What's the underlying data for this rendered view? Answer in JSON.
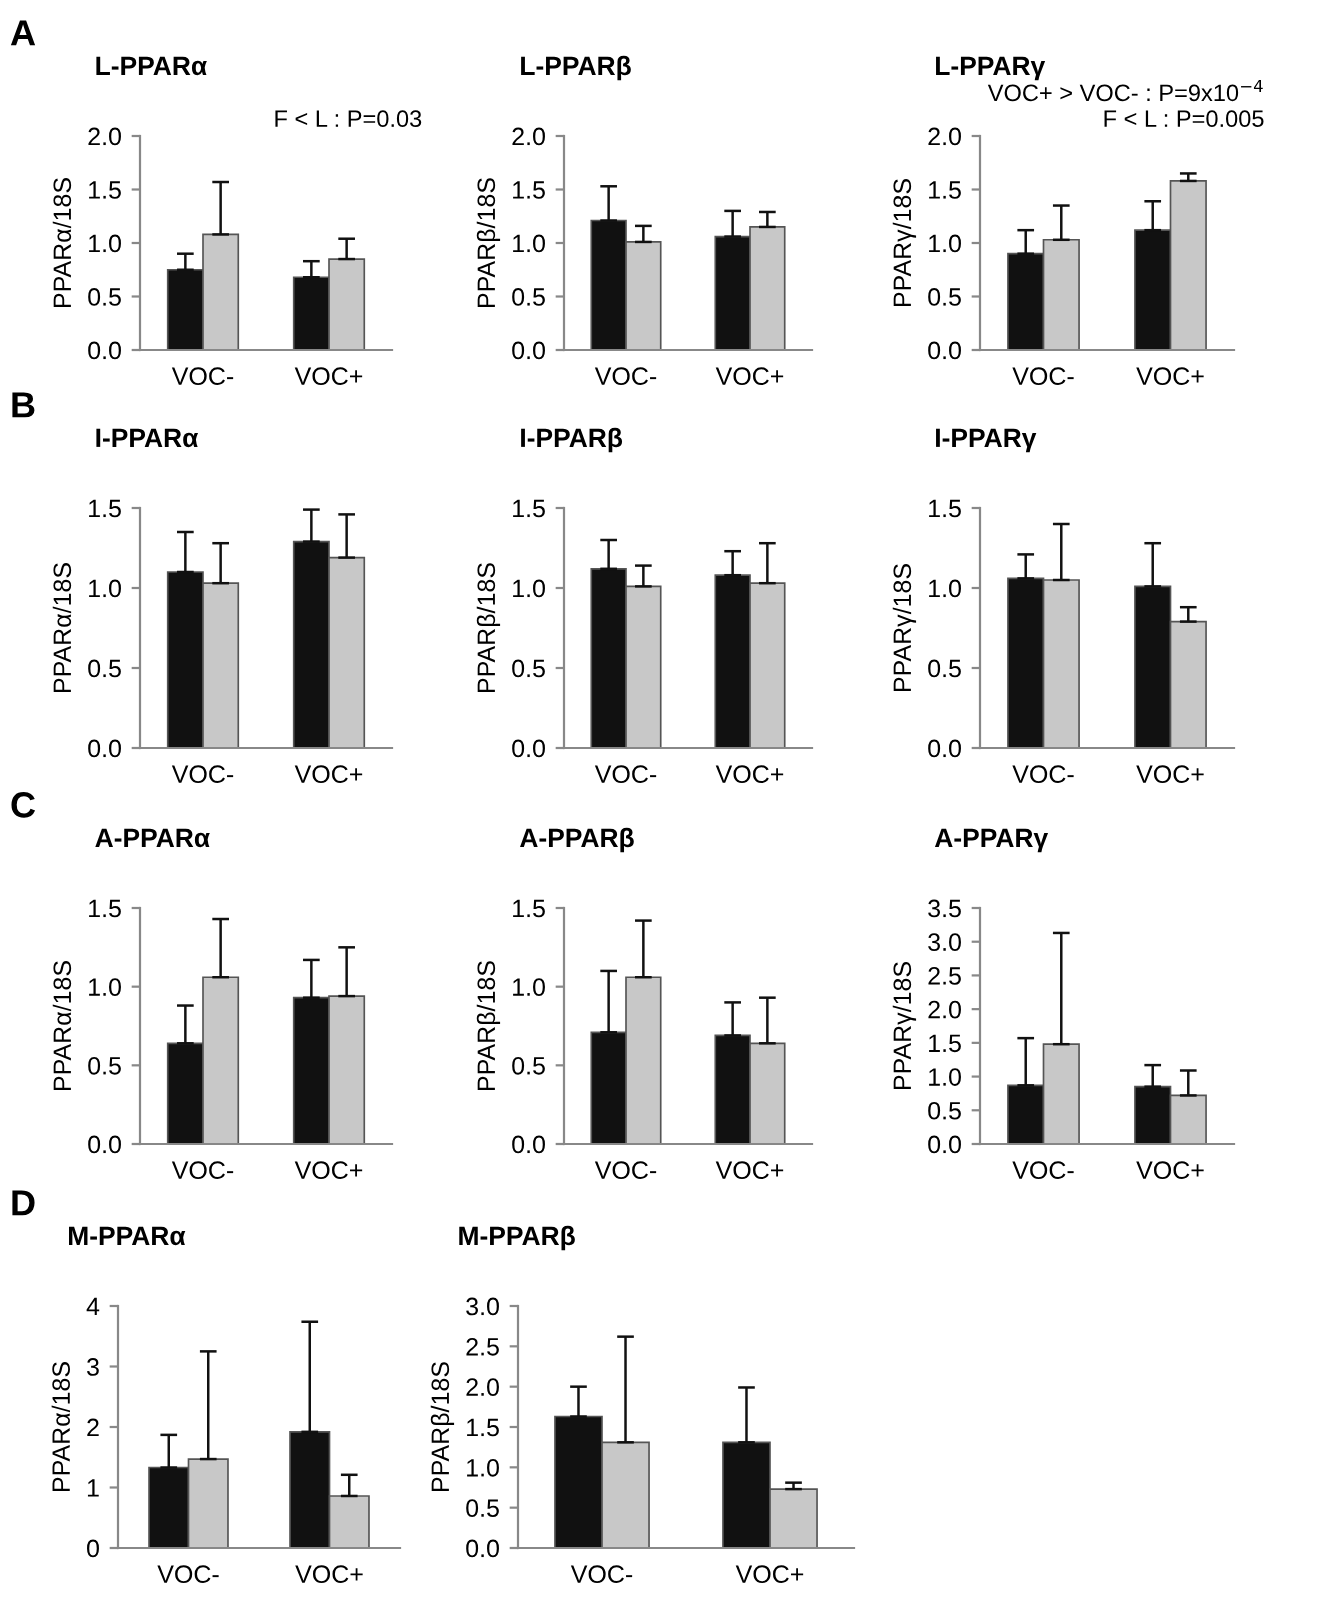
{
  "chart_data": [
    {
      "type": "bar",
      "title": "L-PPARα",
      "ylabel": "PPARα/18S",
      "annotations": [
        "A",
        "F < L : P=0.03"
      ],
      "categories": [
        "VOC-",
        "VOC+"
      ],
      "ylim": [
        0,
        2
      ],
      "yticks": [
        {
          "value": 0,
          "label": "0.0"
        },
        0.5,
        {
          "value": 1,
          "label": "1.0"
        },
        1.5,
        {
          "value": 2,
          "label": "2.0"
        }
      ],
      "series": [
        {
          "color": "#111111",
          "values": [
            0.75,
            0.68
          ],
          "errors": [
            [
              0.75,
              0.9
            ],
            [
              0.68,
              0.83
            ]
          ]
        },
        {
          "color": "#c8c8c8",
          "values": [
            1.08,
            0.85
          ],
          "errors": [
            [
              1.08,
              1.57
            ],
            [
              0.85,
              1.04
            ]
          ]
        }
      ]
    },
    {
      "type": "bar",
      "title": "L-PPARβ",
      "ylabel": "PPARβ/18S",
      "categories": [
        "VOC-",
        "VOC+"
      ],
      "ylim": [
        0,
        2
      ],
      "yticks": [
        {
          "value": 0,
          "label": "0.0"
        },
        0.5,
        {
          "value": 1,
          "label": "1.0"
        },
        1.5,
        {
          "value": 2,
          "label": "2.0"
        }
      ],
      "series": [
        {
          "color": "#111111",
          "values": [
            1.21,
            1.06
          ],
          "errors": [
            [
              1.21,
              1.53
            ],
            [
              1.06,
              1.3
            ]
          ]
        },
        {
          "color": "#c8c8c8",
          "values": [
            1.01,
            1.15
          ],
          "errors": [
            [
              1.01,
              1.16
            ],
            [
              1.15,
              1.29
            ]
          ]
        }
      ]
    },
    {
      "type": "bar",
      "title": "L-PPARγ",
      "ylabel": "PPARγ/18S",
      "annotations": [
        "VOC+ > VOC- : P=9x10$^{−4}$",
        "F < L : P=0.005"
      ],
      "categories": [
        "VOC-",
        "VOC+"
      ],
      "ylim": [
        0,
        2
      ],
      "yticks": [
        {
          "value": 0,
          "label": "0.0"
        },
        0.5,
        {
          "value": 1,
          "label": "1.0"
        },
        1.5,
        {
          "value": 2,
          "label": "2.0"
        }
      ],
      "series": [
        {
          "color": "#111111",
          "values": [
            0.9,
            1.12
          ],
          "errors": [
            [
              0.9,
              1.12
            ],
            [
              1.12,
              1.39
            ]
          ]
        },
        {
          "color": "#c8c8c8",
          "values": [
            1.03,
            1.58
          ],
          "errors": [
            [
              1.03,
              1.35
            ],
            [
              1.58,
              1.65
            ]
          ]
        }
      ]
    },
    {
      "type": "bar",
      "title": "I-PPARα",
      "ylabel": "PPARα/18S",
      "annotations": [
        "B"
      ],
      "categories": [
        "VOC-",
        "VOC+"
      ],
      "ylim": [
        0,
        1.5
      ],
      "yticks": [
        {
          "value": 0,
          "label": "0.0"
        },
        0.5,
        {
          "value": 1,
          "label": "1.0"
        },
        1.5
      ],
      "series": [
        {
          "color": "#111111",
          "values": [
            1.1,
            1.29
          ],
          "errors": [
            [
              1.1,
              1.35
            ],
            [
              1.29,
              1.49
            ]
          ]
        },
        {
          "color": "#c8c8c8",
          "values": [
            1.03,
            1.19
          ],
          "errors": [
            [
              1.03,
              1.28
            ],
            [
              1.19,
              1.46
            ]
          ]
        }
      ]
    },
    {
      "type": "bar",
      "title": "I-PPARβ",
      "ylabel": "PPARβ/18S",
      "categories": [
        "VOC-",
        "VOC+"
      ],
      "ylim": [
        0,
        1.5
      ],
      "yticks": [
        {
          "value": 0,
          "label": "0.0"
        },
        0.5,
        {
          "value": 1,
          "label": "1.0"
        },
        1.5
      ],
      "series": [
        {
          "color": "#111111",
          "values": [
            1.12,
            1.08
          ],
          "errors": [
            [
              1.12,
              1.3
            ],
            [
              1.08,
              1.23
            ]
          ]
        },
        {
          "color": "#c8c8c8",
          "values": [
            1.01,
            1.03
          ],
          "errors": [
            [
              1.01,
              1.14
            ],
            [
              1.03,
              1.28
            ]
          ]
        }
      ]
    },
    {
      "type": "bar",
      "title": "I-PPARγ",
      "ylabel": "PPARγ/18S",
      "categories": [
        "VOC-",
        "VOC+"
      ],
      "ylim": [
        0,
        1.5
      ],
      "yticks": [
        {
          "value": 0,
          "label": "0.0"
        },
        0.5,
        {
          "value": 1,
          "label": "1.0"
        },
        1.5
      ],
      "series": [
        {
          "color": "#111111",
          "values": [
            1.06,
            1.01
          ],
          "errors": [
            [
              1.06,
              1.21
            ],
            [
              1.01,
              1.28
            ]
          ]
        },
        {
          "color": "#c8c8c8",
          "values": [
            1.05,
            0.79
          ],
          "errors": [
            [
              1.05,
              1.4
            ],
            [
              0.79,
              0.88
            ]
          ]
        }
      ]
    },
    {
      "type": "bar",
      "title": "A-PPARα",
      "ylabel": "PPARα/18S",
      "annotations": [
        "C"
      ],
      "categories": [
        "VOC-",
        "VOC+"
      ],
      "ylim": [
        0,
        1.5
      ],
      "yticks": [
        {
          "value": 0,
          "label": "0.0"
        },
        0.5,
        {
          "value": 1,
          "label": "1.0"
        },
        1.5
      ],
      "series": [
        {
          "color": "#111111",
          "values": [
            0.64,
            0.93
          ],
          "errors": [
            [
              0.64,
              0.88
            ],
            [
              0.93,
              1.17
            ]
          ]
        },
        {
          "color": "#c8c8c8",
          "values": [
            1.06,
            0.94
          ],
          "errors": [
            [
              1.06,
              1.43
            ],
            [
              0.94,
              1.25
            ]
          ]
        }
      ]
    },
    {
      "type": "bar",
      "title": "A-PPARβ",
      "ylabel": "PPARβ/18S",
      "categories": [
        "VOC-",
        "VOC+"
      ],
      "ylim": [
        0,
        1.5
      ],
      "yticks": [
        {
          "value": 0,
          "label": "0.0"
        },
        0.5,
        {
          "value": 1,
          "label": "1.0"
        },
        1.5
      ],
      "series": [
        {
          "color": "#111111",
          "values": [
            0.71,
            0.69
          ],
          "errors": [
            [
              0.71,
              1.1
            ],
            [
              0.69,
              0.9
            ]
          ]
        },
        {
          "color": "#c8c8c8",
          "values": [
            1.06,
            0.64
          ],
          "errors": [
            [
              1.06,
              1.42
            ],
            [
              0.64,
              0.93
            ]
          ]
        }
      ]
    },
    {
      "type": "bar",
      "title": "A-PPARγ",
      "ylabel": "PPARγ/18S",
      "categories": [
        "VOC-",
        "VOC+"
      ],
      "ylim": [
        0,
        3.5
      ],
      "yticks": [
        {
          "value": 0,
          "label": "0.0"
        },
        0.5,
        {
          "value": 1,
          "label": "1.0"
        },
        1.5,
        {
          "value": 2,
          "label": "2.0"
        },
        2.5,
        {
          "value": 3,
          "label": "3.0"
        },
        3.5
      ],
      "series": [
        {
          "color": "#111111",
          "values": [
            0.87,
            0.85
          ],
          "errors": [
            [
              0.87,
              1.57
            ],
            [
              0.85,
              1.17
            ]
          ]
        },
        {
          "color": "#c8c8c8",
          "values": [
            1.48,
            0.72
          ],
          "errors": [
            [
              1.48,
              3.13
            ],
            [
              0.72,
              1.09
            ]
          ]
        }
      ]
    },
    {
      "type": "bar",
      "title": "M-PPARα",
      "ylabel": "PPARα/18S",
      "annotations": [
        "D"
      ],
      "categories": [
        "VOC-",
        "VOC+"
      ],
      "ylim": [
        0,
        4
      ],
      "yticks": [
        0,
        1,
        2,
        3,
        4
      ],
      "series": [
        {
          "color": "#111111",
          "values": [
            1.33,
            1.92
          ],
          "errors": [
            [
              1.33,
              1.87
            ],
            [
              1.92,
              3.74
            ]
          ]
        },
        {
          "color": "#c8c8c8",
          "values": [
            1.47,
            0.86
          ],
          "errors": [
            [
              1.47,
              3.25
            ],
            [
              0.86,
              1.21
            ]
          ]
        }
      ]
    },
    {
      "type": "bar",
      "title": "M-PPARβ",
      "ylabel": "PPARβ/18S",
      "categories": [
        "VOC-",
        "VOC+"
      ],
      "ylim": [
        0,
        3
      ],
      "yticks": [
        {
          "value": 0,
          "label": "0.0"
        },
        0.5,
        {
          "value": 1,
          "label": "1.0"
        },
        1.5,
        {
          "value": 2,
          "label": "2.0"
        },
        2.5,
        {
          "value": 3,
          "label": "3.0"
        }
      ],
      "series": [
        {
          "color": "#111111",
          "values": [
            1.63,
            1.31
          ],
          "errors": [
            [
              1.63,
              2.0
            ],
            [
              1.31,
              1.99
            ]
          ]
        },
        {
          "color": "#c8c8c8",
          "values": [
            1.31,
            0.73
          ],
          "errors": [
            [
              1.31,
              2.62
            ],
            [
              0.73,
              0.81
            ]
          ]
        }
      ]
    }
  ]
}
